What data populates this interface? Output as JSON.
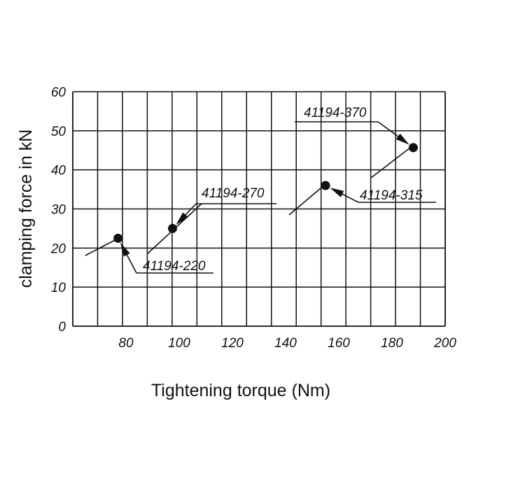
{
  "chart_data": {
    "type": "scatter",
    "title": "",
    "xlabel": "Tightening torque (Nm)",
    "ylabel": "clamping force in kN",
    "xlim": [
      60,
      200
    ],
    "ylim": [
      0,
      60
    ],
    "x_grid_step": 9.33,
    "y_grid_step": 10,
    "grid": true,
    "x_tick_labels": [
      "80",
      "100",
      "120",
      "140",
      "160",
      "180",
      "200"
    ],
    "y_tick_labels": [
      "0",
      "10",
      "20",
      "30",
      "40",
      "50",
      "60"
    ],
    "points": [
      {
        "label": "41194-220",
        "x": 77,
        "y": 22.5
      },
      {
        "label": "41194-270",
        "x": 97.5,
        "y": 25
      },
      {
        "label": "41194-315",
        "x": 155,
        "y": 36
      },
      {
        "label": "41194-370",
        "x": 188,
        "y": 45.7
      }
    ]
  }
}
